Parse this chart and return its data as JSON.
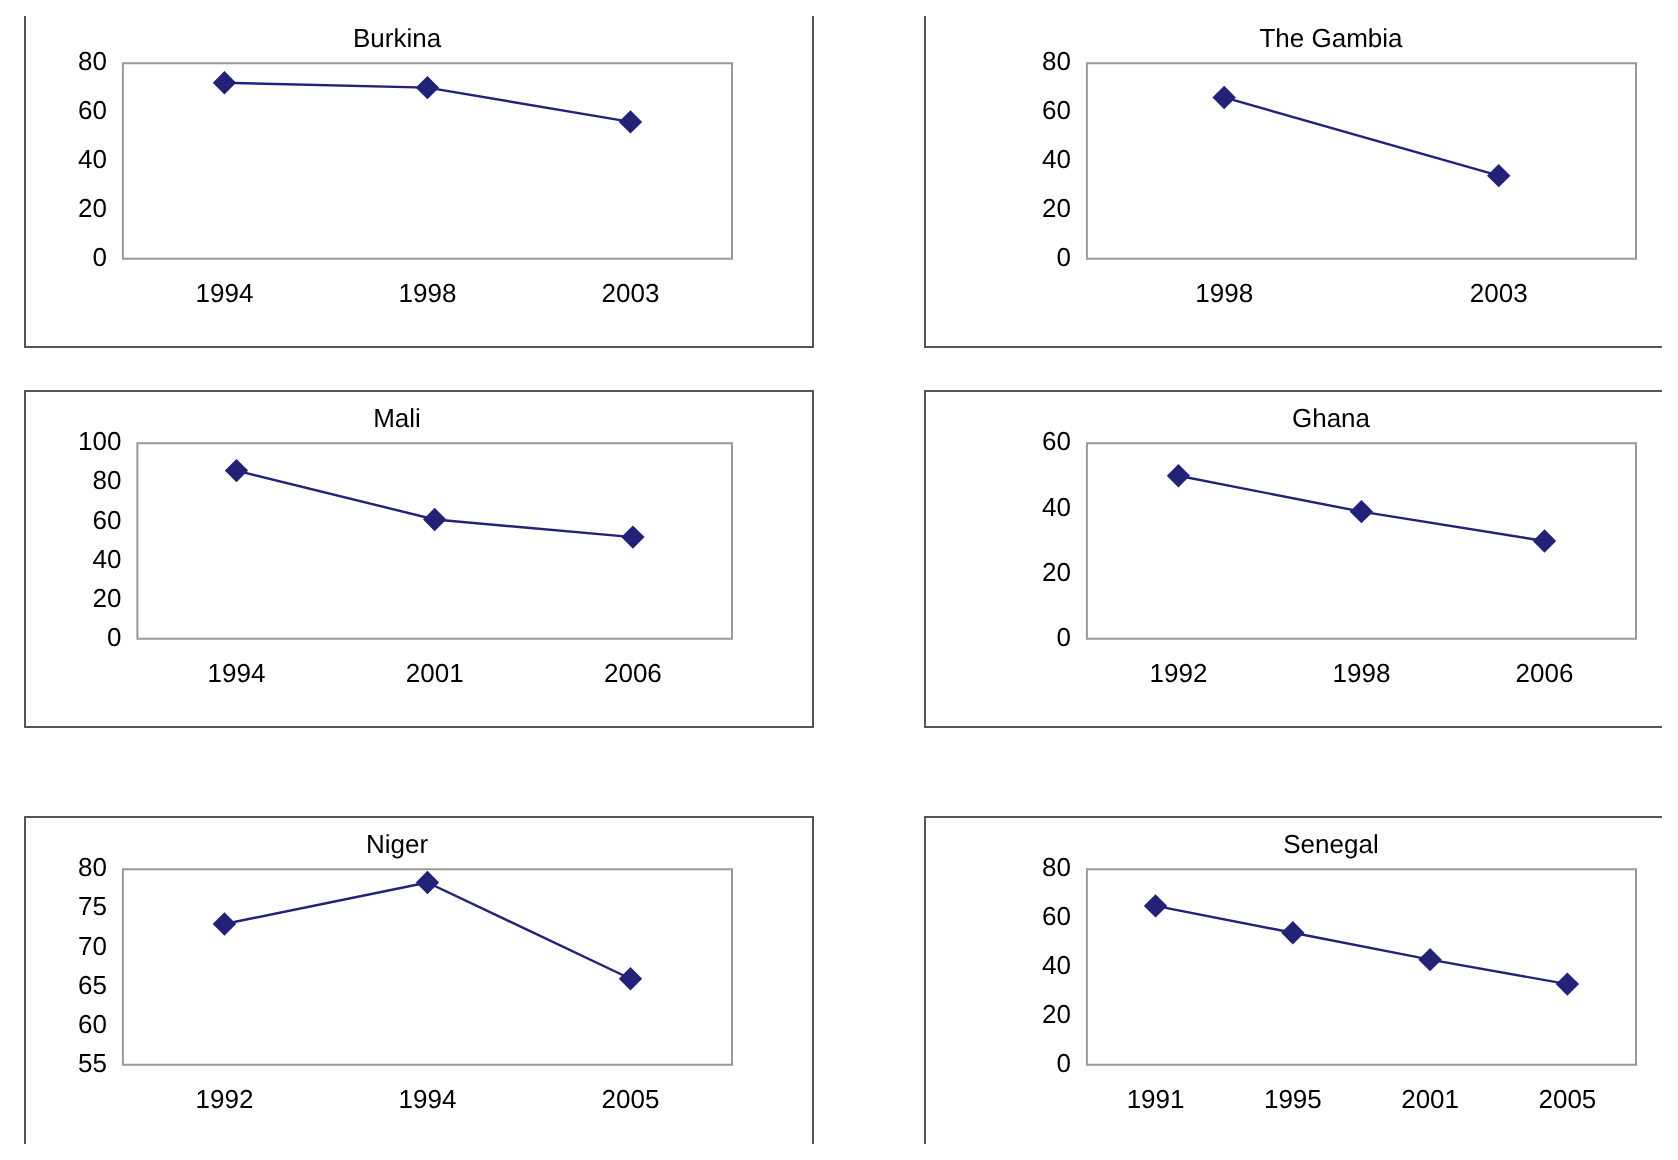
{
  "chart_data": [
    {
      "type": "line",
      "title": "Burkina",
      "categories": [
        "1994",
        "1998",
        "2003"
      ],
      "values": [
        72,
        70,
        56
      ],
      "color": "#222277",
      "ylim": [
        0,
        80
      ],
      "yticks": [
        0,
        20,
        40,
        60,
        80
      ],
      "marker": "diamond"
    },
    {
      "type": "line",
      "title": "The Gambia",
      "categories": [
        "1998",
        "2003"
      ],
      "values": [
        66,
        34
      ],
      "color": "#222277",
      "ylim": [
        0,
        80
      ],
      "yticks": [
        0,
        20,
        40,
        60,
        80
      ],
      "marker": "diamond"
    },
    {
      "type": "line",
      "title": "Mali",
      "categories": [
        "1994",
        "2001",
        "2006"
      ],
      "values": [
        86,
        61,
        52
      ],
      "color": "#222277",
      "ylim": [
        0,
        100
      ],
      "yticks": [
        0,
        20,
        40,
        60,
        80,
        100
      ],
      "marker": "diamond"
    },
    {
      "type": "line",
      "title": "Ghana",
      "categories": [
        "1992",
        "1998",
        "2006"
      ],
      "values": [
        50,
        39,
        30
      ],
      "color": "#222277",
      "ylim": [
        0,
        60
      ],
      "yticks": [
        0,
        20,
        40,
        60
      ],
      "marker": "diamond"
    },
    {
      "type": "line",
      "title": "Niger",
      "categories": [
        "1992",
        "1994",
        "2005"
      ],
      "values": [
        73,
        78.3,
        66
      ],
      "color": "#222277",
      "ylim": [
        55,
        80
      ],
      "yticks": [
        55,
        60,
        65,
        70,
        75,
        80
      ],
      "marker": "diamond"
    },
    {
      "type": "line",
      "title": "Senegal",
      "categories": [
        "1991",
        "1995",
        "2001",
        "2005"
      ],
      "values": [
        65,
        54,
        43,
        33
      ],
      "color": "#222277",
      "ylim": [
        0,
        80
      ],
      "yticks": [
        0,
        20,
        40,
        60,
        80
      ],
      "marker": "diamond"
    }
  ]
}
